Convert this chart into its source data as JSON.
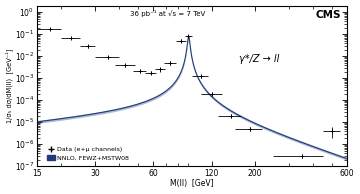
{
  "title_cms": "CMS",
  "title_lumi": "36 pb⁻¹ at √s = 7 TeV",
  "process_label": "γ*/Z → ll",
  "xlabel": "M(ll)  [GeV]",
  "ylabel": "1/σ₅ dσ/dM(ll)  [GeV⁻¹]",
  "xlim": [
    15,
    600
  ],
  "ylim": [
    1e-07,
    2.0
  ],
  "legend_data": "Data (e+μ channels)",
  "legend_theory": "NNLO, FEWZ+MSTW08",
  "theory_color": "#1f3a7a",
  "data_color": "black",
  "bg_color": "white",
  "data_x": [
    17.5,
    22.5,
    27.5,
    35,
    43,
    51,
    58,
    65,
    73,
    83,
    91,
    105,
    120,
    150,
    188,
    350,
    500
  ],
  "data_y": [
    0.18,
    0.07,
    0.028,
    0.009,
    0.004,
    0.0022,
    0.0018,
    0.0025,
    0.005,
    0.05,
    0.08,
    0.0012,
    0.0002,
    2e-05,
    5e-06,
    3e-07,
    4e-06
  ],
  "data_xerr_l": [
    2.5,
    2.5,
    2.5,
    5,
    5,
    4,
    4,
    4,
    5,
    5,
    4,
    10,
    15,
    20,
    30,
    100,
    50
  ],
  "data_xerr_h": [
    2.5,
    2.5,
    2.5,
    5,
    5,
    4,
    4,
    4,
    5,
    5,
    4,
    10,
    15,
    20,
    30,
    100,
    50
  ],
  "data_yerr_l": [
    0.02,
    0.008,
    0.004,
    0.0015,
    0.0006,
    0.0004,
    0.0003,
    0.0005,
    0.001,
    0.008,
    0.01,
    0.0002,
    4e-05,
    4e-06,
    1e-06,
    5e-08,
    2e-06
  ],
  "data_yerr_h": [
    0.02,
    0.008,
    0.004,
    0.0015,
    0.0006,
    0.0004,
    0.0003,
    0.0005,
    0.001,
    0.008,
    0.01,
    0.0002,
    4e-05,
    4e-06,
    1e-06,
    5e-08,
    2e-06
  ],
  "xticks": [
    15,
    30,
    60,
    120,
    200,
    600
  ],
  "yticks": [
    1e-07,
    1e-06,
    1e-05,
    0.0001,
    0.001,
    0.01,
    0.1,
    1.0
  ]
}
